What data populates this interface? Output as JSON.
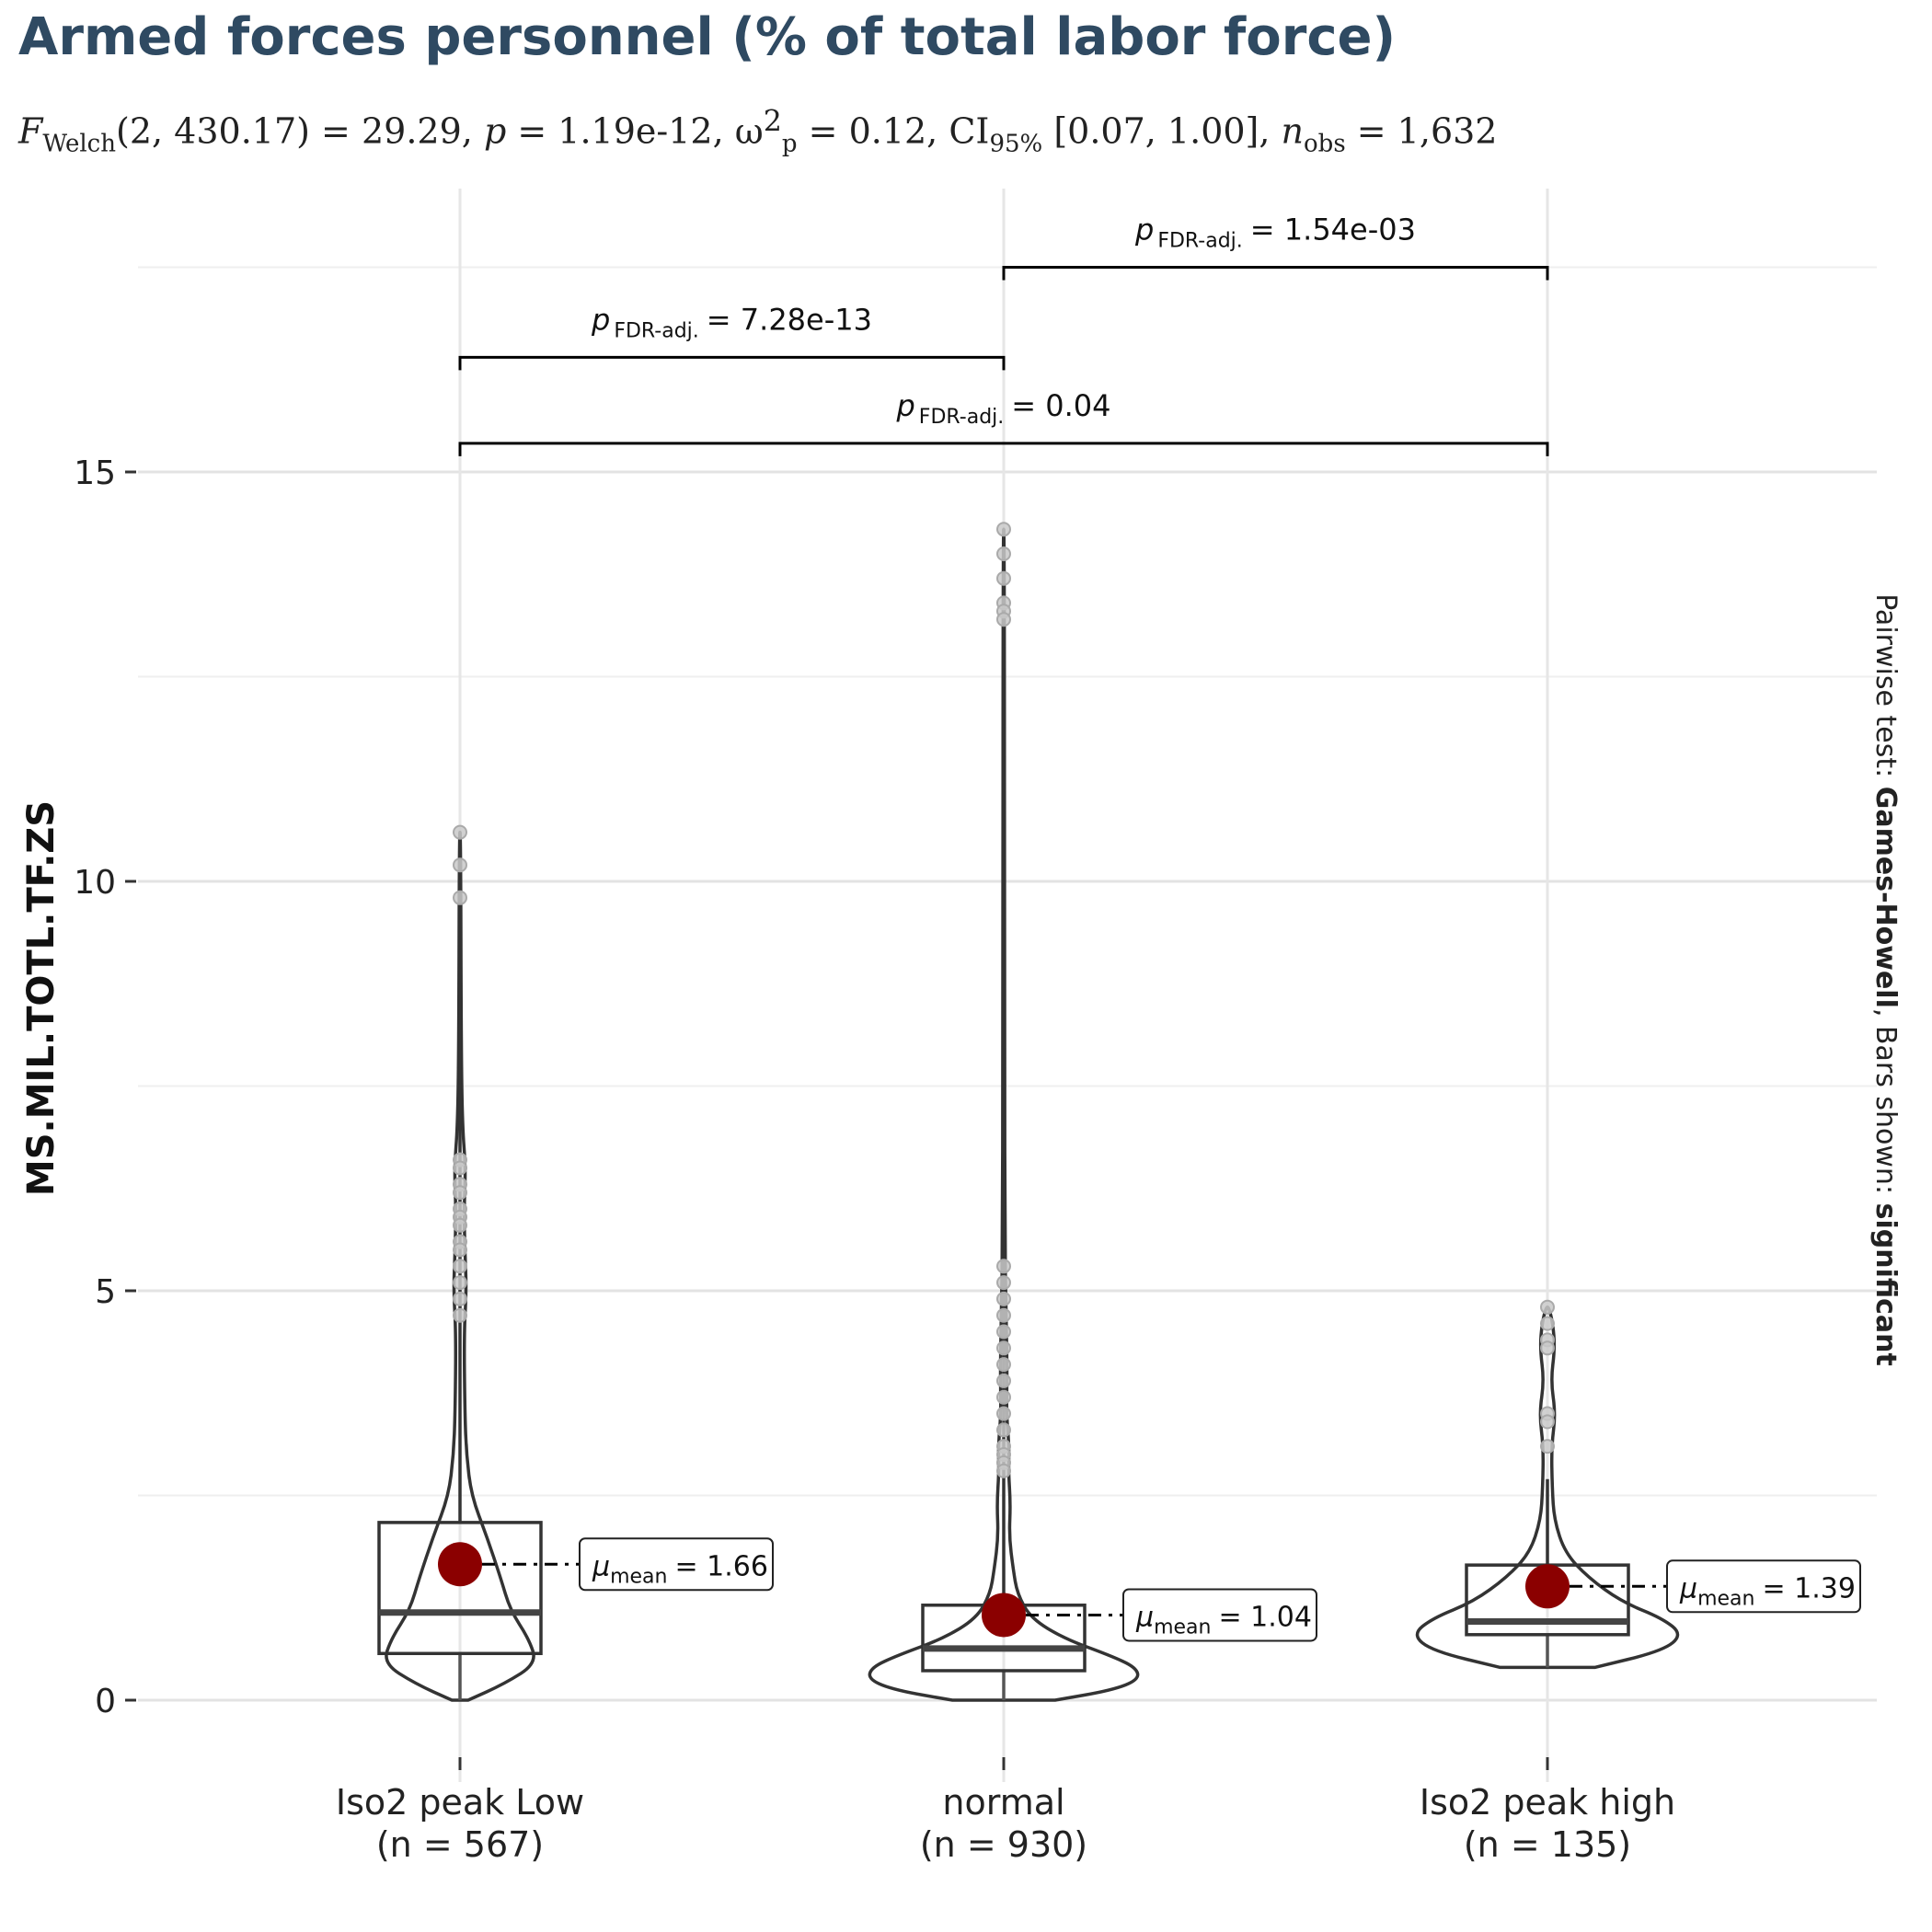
{
  "chart_data": {
    "type": "violin",
    "title": "Armed forces personnel (% of total labor force)",
    "subtitle": {
      "stat_label": "F",
      "stat_sub": "Welch",
      "df": "(2, 430.17)",
      "stat_value": "= 29.29,",
      "p_label": "p",
      "p_value": "= 1.19e-12,",
      "effect_label": "ω",
      "effect_sup": "2",
      "effect_sub": "p",
      "effect_value": "= 0.12,",
      "ci_label": "CI",
      "ci_sub": "95%",
      "ci_value": "[0.07, 1.00],",
      "n_label": "n",
      "n_sub": "obs",
      "n_value": "= 1,632"
    },
    "ylabel": "MS.MIL.TOTL.TF.ZS",
    "ylim": [
      -1,
      18
    ],
    "yticks": [
      0,
      5,
      10,
      15
    ],
    "right_caption": {
      "prefix": "Pairwise test: ",
      "test": "Games-Howell",
      "middle": ", Bars shown: ",
      "shown": "significant"
    },
    "mean_color": "#8b0000",
    "groups": [
      {
        "name": "Iso2 peak  Low",
        "n_label": "(n = 567)",
        "q1": 0.57,
        "median": 1.07,
        "q3": 2.17,
        "whisker_low": 0.0,
        "whisker_high": 10.6,
        "mean": 1.66,
        "mean_label": "= 1.66",
        "outliers": [
          10.6,
          10.2,
          9.8,
          6.6,
          6.5,
          6.3,
          6.2,
          6.0,
          5.9,
          5.8,
          5.6,
          5.5,
          5.3,
          5.1,
          4.9,
          4.7
        ],
        "violin": [
          [
            0.0,
            0.1
          ],
          [
            0.2,
            0.55
          ],
          [
            0.45,
            0.95
          ],
          [
            0.75,
            0.85
          ],
          [
            1.1,
            0.62
          ],
          [
            1.5,
            0.5
          ],
          [
            2.0,
            0.33
          ],
          [
            2.5,
            0.14
          ],
          [
            3.0,
            0.08
          ],
          [
            3.5,
            0.06
          ],
          [
            4.5,
            0.05
          ],
          [
            5.0,
            0.08
          ],
          [
            5.5,
            0.06
          ],
          [
            6.0,
            0.05
          ],
          [
            6.5,
            0.07
          ],
          [
            7.0,
            0.03
          ],
          [
            8.0,
            0.015
          ],
          [
            10.6,
            0.008
          ]
        ]
      },
      {
        "name": "normal",
        "n_label": "(n = 930)",
        "q1": 0.36,
        "median": 0.63,
        "q3": 1.16,
        "whisker_low": 0.0,
        "whisker_high": 14.3,
        "mean": 1.04,
        "mean_label": "= 1.04",
        "outliers": [
          14.3,
          14.0,
          13.7,
          13.4,
          13.3,
          13.2,
          5.3,
          5.1,
          4.9,
          4.7,
          4.5,
          4.3,
          4.1,
          3.9,
          3.7,
          3.5,
          3.3,
          3.1,
          3.0,
          2.9,
          2.8
        ],
        "violin": [
          [
            0.0,
            0.38
          ],
          [
            0.12,
            0.8
          ],
          [
            0.25,
            1.0
          ],
          [
            0.4,
            0.98
          ],
          [
            0.55,
            0.78
          ],
          [
            0.75,
            0.45
          ],
          [
            1.0,
            0.2
          ],
          [
            1.3,
            0.1
          ],
          [
            1.6,
            0.07
          ],
          [
            2.0,
            0.04
          ],
          [
            2.4,
            0.05
          ],
          [
            2.8,
            0.035
          ],
          [
            3.1,
            0.04
          ],
          [
            3.5,
            0.02
          ],
          [
            4.0,
            0.025
          ],
          [
            4.5,
            0.02
          ],
          [
            5.0,
            0.015
          ],
          [
            5.4,
            0.01
          ],
          [
            8.0,
            0.006
          ],
          [
            14.3,
            0.005
          ]
        ]
      },
      {
        "name": "Iso2 peak  high",
        "n_label": "(n = 135)",
        "q1": 0.8,
        "median": 0.96,
        "q3": 1.65,
        "whisker_low": 0.4,
        "whisker_high": 2.7,
        "mean": 1.39,
        "mean_label": "= 1.39",
        "outliers": [
          4.8,
          4.6,
          4.4,
          4.3,
          3.5,
          3.4,
          3.1
        ],
        "violin": [
          [
            0.4,
            0.35
          ],
          [
            0.6,
            0.85
          ],
          [
            0.8,
            1.0
          ],
          [
            1.0,
            0.85
          ],
          [
            1.2,
            0.55
          ],
          [
            1.5,
            0.3
          ],
          [
            1.8,
            0.13
          ],
          [
            2.2,
            0.05
          ],
          [
            2.6,
            0.035
          ],
          [
            3.1,
            0.03
          ],
          [
            3.5,
            0.06
          ],
          [
            3.9,
            0.025
          ],
          [
            4.3,
            0.055
          ],
          [
            4.6,
            0.04
          ],
          [
            4.8,
            0.01
          ]
        ]
      }
    ],
    "comparisons": [
      {
        "from": 1,
        "to": 2,
        "y": 17.5,
        "label_prefix": "p",
        "label_sub": "FDR-adj.",
        "label_value": "= 1.54e-03"
      },
      {
        "from": 0,
        "to": 1,
        "y": 16.4,
        "label_prefix": "p",
        "label_sub": "FDR-adj.",
        "label_value": "= 7.28e-13"
      },
      {
        "from": 0,
        "to": 2,
        "y": 15.35,
        "label_prefix": "p",
        "label_sub": "FDR-adj.",
        "label_value": "= 0.04"
      }
    ],
    "mean_label_prefix": "μ",
    "mean_label_sub": "mean"
  }
}
